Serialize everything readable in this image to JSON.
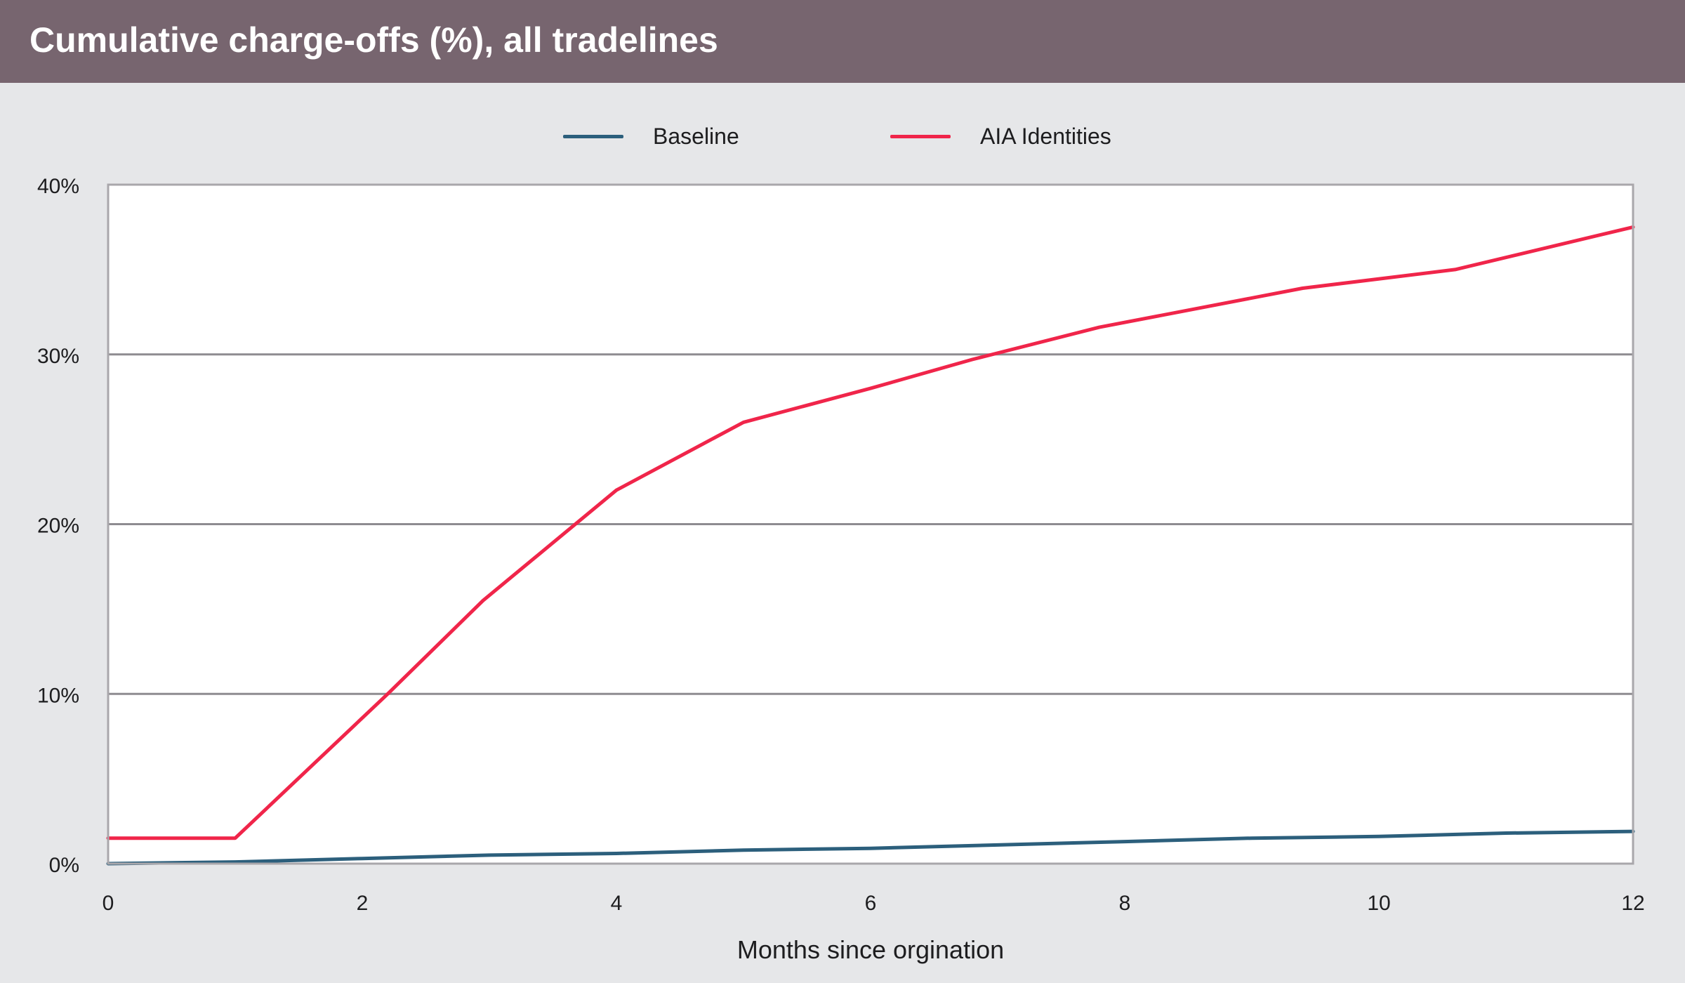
{
  "header": {
    "title": "Cumulative charge-offs (%), all tradelines"
  },
  "chart_data": {
    "type": "line",
    "title": "Cumulative charge-offs (%), all tradelines",
    "xlabel": "Months since orgination",
    "ylabel": "",
    "xlim": [
      0,
      12
    ],
    "ylim": [
      0,
      40
    ],
    "x_ticks": [
      0,
      2,
      4,
      6,
      8,
      10,
      12
    ],
    "x_tick_labels": [
      "0",
      "2",
      "4",
      "6",
      "8",
      "10",
      "12"
    ],
    "y_ticks": [
      0,
      10,
      20,
      30,
      40
    ],
    "y_tick_labels": [
      "0%",
      "10%",
      "20%",
      "30%",
      "40%"
    ],
    "grid": "horizontal",
    "legend_position": "top-center",
    "series": [
      {
        "name": "Baseline",
        "color": "#2c5f7c",
        "x": [
          0,
          1,
          2,
          3,
          4,
          5,
          6,
          7,
          8,
          9,
          10,
          11,
          12
        ],
        "y": [
          0,
          0.1,
          0.3,
          0.5,
          0.6,
          0.8,
          0.9,
          1.1,
          1.3,
          1.5,
          1.6,
          1.8,
          1.9
        ]
      },
      {
        "name": "AIA Identities",
        "color": "#f0254a",
        "x": [
          0,
          1,
          2.2,
          2.95,
          4,
          5,
          6,
          6.8,
          7.8,
          9.4,
          10.6,
          12
        ],
        "y": [
          1.5,
          1.5,
          10,
          15.5,
          22,
          26,
          28,
          29.7,
          31.6,
          33.9,
          35,
          37.5
        ]
      }
    ]
  }
}
